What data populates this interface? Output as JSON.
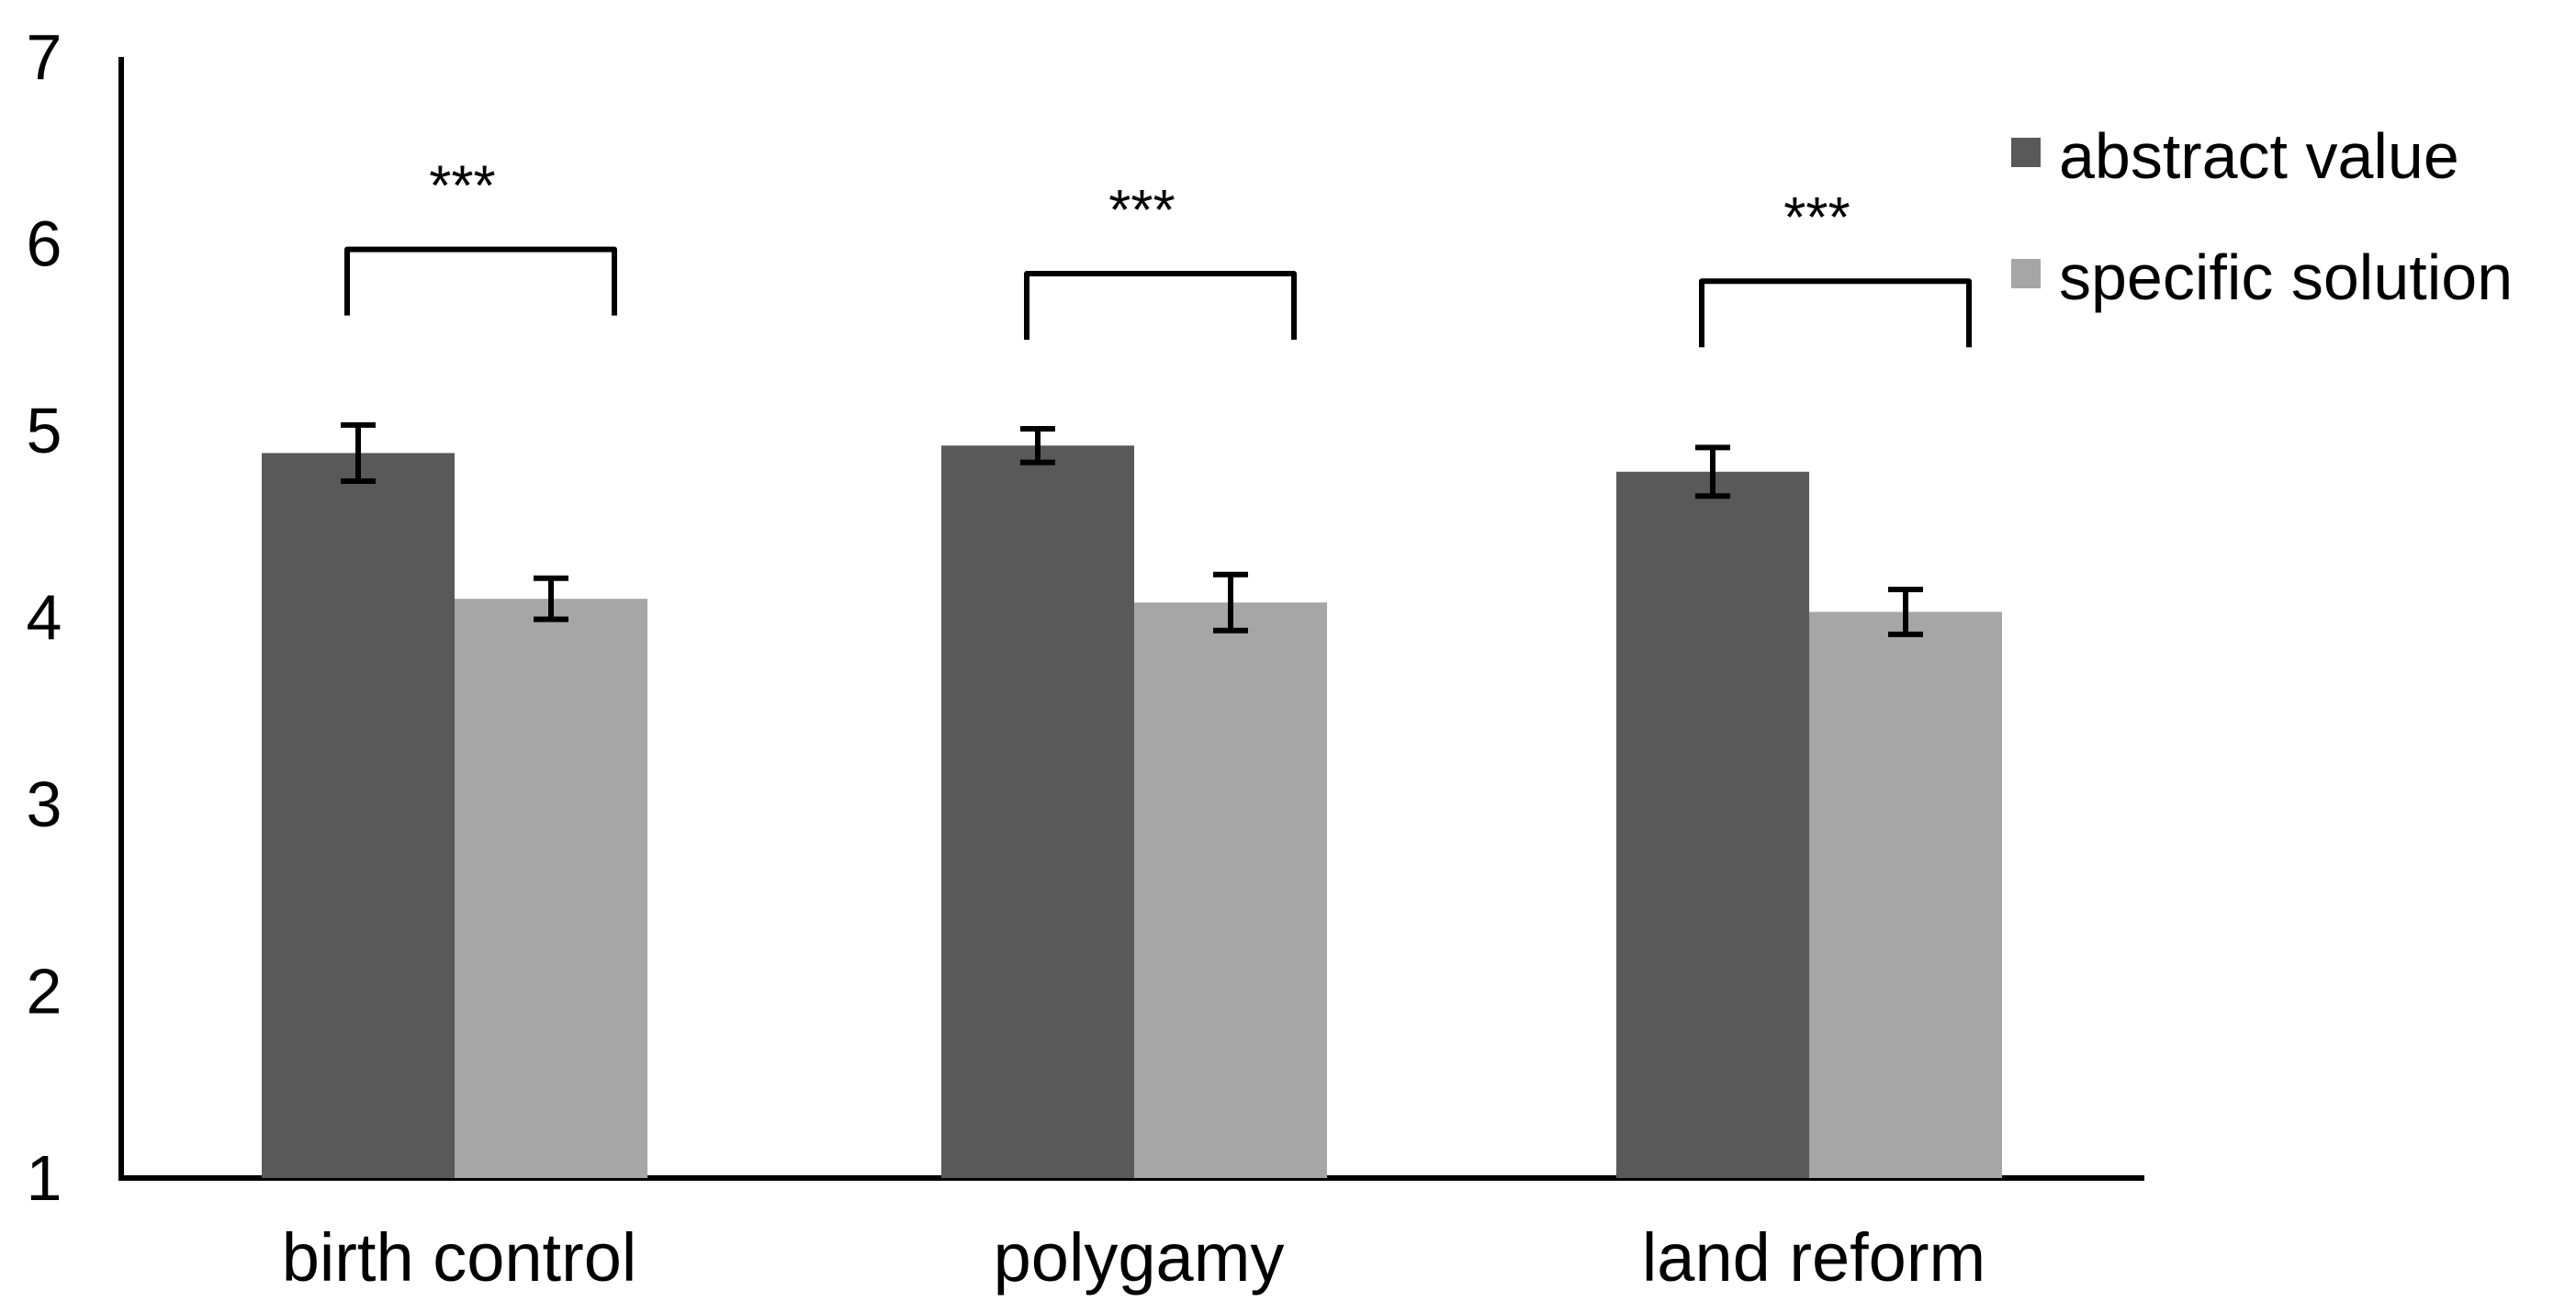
{
  "chart_data": {
    "type": "bar",
    "title": "",
    "xlabel": "",
    "ylabel": "",
    "ylim": [
      1,
      7
    ],
    "yticks": [
      1,
      2,
      3,
      4,
      5,
      6,
      7
    ],
    "grid": false,
    "legend_position": "top-right",
    "categories": [
      "birth control",
      "polygamy",
      "land reform"
    ],
    "series": [
      {
        "name": "abstract value",
        "color": "#595959",
        "values": [
          4.88,
          4.92,
          4.78
        ],
        "error": [
          0.15,
          0.09,
          0.13
        ]
      },
      {
        "name": "specific solution",
        "color": "#a6a6a6",
        "values": [
          4.1,
          4.08,
          4.03
        ],
        "error": [
          0.11,
          0.15,
          0.12
        ]
      }
    ],
    "annotations": [
      {
        "category": "birth control",
        "text": "***",
        "bracket_y": 5.97
      },
      {
        "category": "polygamy",
        "text": "***",
        "bracket_y": 5.84
      },
      {
        "category": "land reform",
        "text": "***",
        "bracket_y": 5.8
      }
    ]
  }
}
